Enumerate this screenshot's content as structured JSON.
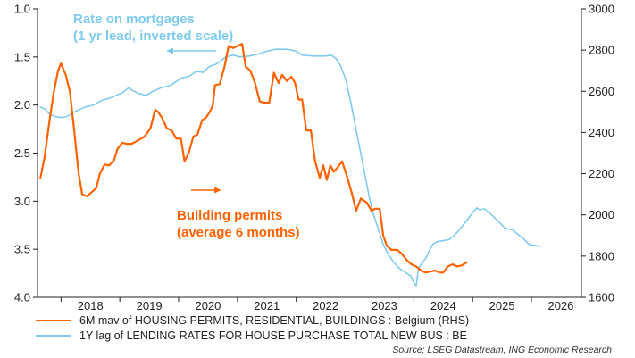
{
  "chart_data": {
    "type": "line",
    "title": "",
    "x_ticks": [
      "2018",
      "2019",
      "2020",
      "2021",
      "2022",
      "2023",
      "2024",
      "2025",
      "2026"
    ],
    "x_range": [
      2017.6,
      2026.85
    ],
    "left_axis": {
      "ticks": [
        "1.0",
        "1.5",
        "2.0",
        "2.5",
        "3.0",
        "3.5",
        "4.0"
      ],
      "range": [
        1.0,
        4.0
      ],
      "inverted": true
    },
    "right_axis": {
      "ticks": [
        "1600",
        "1800",
        "2000",
        "2200",
        "2400",
        "2600",
        "2800",
        "3000"
      ],
      "range": [
        1600,
        3000
      ]
    },
    "grid": false,
    "annotations": {
      "rate_line1": "Rate on mortgages",
      "rate_line2": "(1 yr lead, inverted scale)",
      "permits_line1": "Building permits",
      "permits_line2": "(average 6 months)"
    },
    "series": [
      {
        "name": "6M mav of HOUSING PERMITS, RESIDENTIAL, BUILDINGS : Belgium (RHS)",
        "axis": "right",
        "color": "#ff6200",
        "points": [
          [
            2017.65,
            2180
          ],
          [
            2017.72,
            2280
          ],
          [
            2017.8,
            2450
          ],
          [
            2017.88,
            2600
          ],
          [
            2017.95,
            2700
          ],
          [
            2018.0,
            2735
          ],
          [
            2018.08,
            2680
          ],
          [
            2018.15,
            2600
          ],
          [
            2018.22,
            2420
          ],
          [
            2018.3,
            2200
          ],
          [
            2018.36,
            2100
          ],
          [
            2018.44,
            2090
          ],
          [
            2018.52,
            2110
          ],
          [
            2018.6,
            2130
          ],
          [
            2018.66,
            2200
          ],
          [
            2018.74,
            2245
          ],
          [
            2018.82,
            2240
          ],
          [
            2018.9,
            2265
          ],
          [
            2018.96,
            2320
          ],
          [
            2019.04,
            2350
          ],
          [
            2019.12,
            2345
          ],
          [
            2019.2,
            2345
          ],
          [
            2019.3,
            2360
          ],
          [
            2019.42,
            2380
          ],
          [
            2019.52,
            2420
          ],
          [
            2019.6,
            2510
          ],
          [
            2019.65,
            2500
          ],
          [
            2019.72,
            2470
          ],
          [
            2019.8,
            2420
          ],
          [
            2019.88,
            2410
          ],
          [
            2019.96,
            2370
          ],
          [
            2020.04,
            2370
          ],
          [
            2020.1,
            2260
          ],
          [
            2020.17,
            2300
          ],
          [
            2020.25,
            2380
          ],
          [
            2020.32,
            2390
          ],
          [
            2020.4,
            2460
          ],
          [
            2020.46,
            2470
          ],
          [
            2020.53,
            2500
          ],
          [
            2020.58,
            2530
          ],
          [
            2020.62,
            2630
          ],
          [
            2020.7,
            2635
          ],
          [
            2020.78,
            2720
          ],
          [
            2020.85,
            2820
          ],
          [
            2020.93,
            2810
          ],
          [
            2021.0,
            2820
          ],
          [
            2021.08,
            2830
          ],
          [
            2021.14,
            2720
          ],
          [
            2021.22,
            2700
          ],
          [
            2021.3,
            2640
          ],
          [
            2021.38,
            2550
          ],
          [
            2021.46,
            2545
          ],
          [
            2021.54,
            2545
          ],
          [
            2021.62,
            2690
          ],
          [
            2021.7,
            2640
          ],
          [
            2021.76,
            2680
          ],
          [
            2021.84,
            2650
          ],
          [
            2021.92,
            2670
          ],
          [
            2021.98,
            2640
          ],
          [
            2022.04,
            2560
          ],
          [
            2022.1,
            2560
          ],
          [
            2022.17,
            2410
          ],
          [
            2022.25,
            2410
          ],
          [
            2022.32,
            2260
          ],
          [
            2022.4,
            2180
          ],
          [
            2022.46,
            2240
          ],
          [
            2022.52,
            2170
          ],
          [
            2022.58,
            2240
          ],
          [
            2022.64,
            2210
          ],
          [
            2022.7,
            2230
          ],
          [
            2022.78,
            2260
          ],
          [
            2022.86,
            2190
          ],
          [
            2022.94,
            2110
          ],
          [
            2023.02,
            2020
          ],
          [
            2023.1,
            2080
          ],
          [
            2023.2,
            2060
          ],
          [
            2023.28,
            2020
          ],
          [
            2023.34,
            2030
          ],
          [
            2023.42,
            2030
          ],
          [
            2023.48,
            1900
          ],
          [
            2023.54,
            1850
          ],
          [
            2023.62,
            1830
          ],
          [
            2023.72,
            1830
          ],
          [
            2023.8,
            1810
          ],
          [
            2023.88,
            1780
          ],
          [
            2023.96,
            1760
          ],
          [
            2024.04,
            1750
          ],
          [
            2024.12,
            1730
          ],
          [
            2024.2,
            1720
          ],
          [
            2024.28,
            1725
          ],
          [
            2024.36,
            1730
          ],
          [
            2024.44,
            1720
          ],
          [
            2024.5,
            1720
          ],
          [
            2024.58,
            1750
          ],
          [
            2024.66,
            1760
          ],
          [
            2024.74,
            1750
          ],
          [
            2024.82,
            1755
          ],
          [
            2024.9,
            1770
          ]
        ]
      },
      {
        "name": "1Y lag of LENDING RATES FOR  HOUSE PURCHASE TOTAL NEW BUS : BE",
        "axis": "left",
        "color": "#7fcbef",
        "points": [
          [
            2017.65,
            2.02
          ],
          [
            2017.72,
            2.04
          ],
          [
            2017.8,
            2.09
          ],
          [
            2017.9,
            2.12
          ],
          [
            2018.0,
            2.13
          ],
          [
            2018.1,
            2.12
          ],
          [
            2018.2,
            2.08
          ],
          [
            2018.3,
            2.05
          ],
          [
            2018.42,
            2.02
          ],
          [
            2018.55,
            2.0
          ],
          [
            2018.7,
            1.95
          ],
          [
            2018.82,
            1.93
          ],
          [
            2018.94,
            1.9
          ],
          [
            2019.05,
            1.87
          ],
          [
            2019.15,
            1.82
          ],
          [
            2019.22,
            1.85
          ],
          [
            2019.32,
            1.88
          ],
          [
            2019.45,
            1.9
          ],
          [
            2019.55,
            1.86
          ],
          [
            2019.7,
            1.82
          ],
          [
            2019.85,
            1.8
          ],
          [
            2019.95,
            1.76
          ],
          [
            2020.05,
            1.72
          ],
          [
            2020.18,
            1.7
          ],
          [
            2020.3,
            1.65
          ],
          [
            2020.42,
            1.66
          ],
          [
            2020.52,
            1.6
          ],
          [
            2020.62,
            1.58
          ],
          [
            2020.7,
            1.55
          ],
          [
            2020.8,
            1.5
          ],
          [
            2020.92,
            1.48
          ],
          [
            2021.05,
            1.5
          ],
          [
            2021.2,
            1.49
          ],
          [
            2021.35,
            1.47
          ],
          [
            2021.5,
            1.44
          ],
          [
            2021.65,
            1.42
          ],
          [
            2021.85,
            1.42
          ],
          [
            2022.0,
            1.44
          ],
          [
            2022.1,
            1.48
          ],
          [
            2022.3,
            1.49
          ],
          [
            2022.5,
            1.49
          ],
          [
            2022.6,
            1.48
          ],
          [
            2022.68,
            1.52
          ],
          [
            2022.76,
            1.6
          ],
          [
            2022.84,
            1.73
          ],
          [
            2022.92,
            1.95
          ],
          [
            2023.0,
            2.2
          ],
          [
            2023.08,
            2.45
          ],
          [
            2023.16,
            2.7
          ],
          [
            2023.24,
            2.95
          ],
          [
            2023.32,
            3.15
          ],
          [
            2023.4,
            3.3
          ],
          [
            2023.48,
            3.45
          ],
          [
            2023.56,
            3.55
          ],
          [
            2023.64,
            3.62
          ],
          [
            2023.72,
            3.68
          ],
          [
            2023.8,
            3.72
          ],
          [
            2023.88,
            3.75
          ],
          [
            2023.95,
            3.78
          ],
          [
            2024.0,
            3.85
          ],
          [
            2024.04,
            3.88
          ],
          [
            2024.08,
            3.7
          ],
          [
            2024.14,
            3.64
          ],
          [
            2024.2,
            3.6
          ],
          [
            2024.26,
            3.52
          ],
          [
            2024.32,
            3.45
          ],
          [
            2024.4,
            3.42
          ],
          [
            2024.5,
            3.41
          ],
          [
            2024.6,
            3.4
          ],
          [
            2024.7,
            3.35
          ],
          [
            2024.8,
            3.28
          ],
          [
            2024.9,
            3.2
          ],
          [
            2025.0,
            3.12
          ],
          [
            2025.07,
            3.07
          ],
          [
            2025.12,
            3.09
          ],
          [
            2025.2,
            3.08
          ],
          [
            2025.3,
            3.13
          ],
          [
            2025.42,
            3.2
          ],
          [
            2025.55,
            3.28
          ],
          [
            2025.68,
            3.3
          ],
          [
            2025.78,
            3.35
          ],
          [
            2025.88,
            3.4
          ],
          [
            2025.96,
            3.45
          ],
          [
            2026.05,
            3.46
          ],
          [
            2026.15,
            3.47
          ]
        ]
      }
    ]
  },
  "source": "Source: LSEG Datastream, ING Economic Research"
}
